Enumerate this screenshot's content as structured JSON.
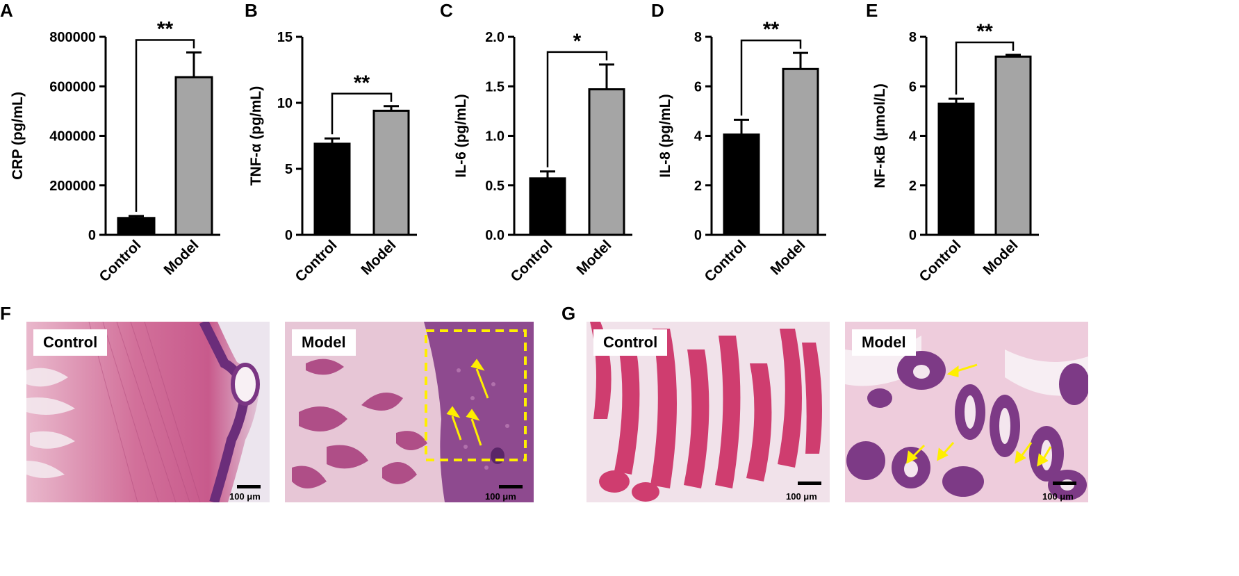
{
  "chart_data": [
    {
      "type": "bar",
      "panel": "A",
      "categories": [
        "Control",
        "Model"
      ],
      "values": [
        68000,
        637000
      ],
      "errors": [
        8000,
        100000
      ],
      "ylabel": "CRP (pg/mL)",
      "ylim": [
        0,
        800000
      ],
      "ticks": [
        0,
        200000,
        400000,
        600000,
        800000
      ],
      "tick_labels": [
        "0",
        "200000",
        "400000",
        "600000",
        "800000"
      ],
      "significance": "**",
      "colors": [
        "#000000",
        "#a5a5a5"
      ]
    },
    {
      "type": "bar",
      "panel": "B",
      "categories": [
        "Control",
        "Model"
      ],
      "values": [
        6.9,
        9.4
      ],
      "errors": [
        0.4,
        0.35
      ],
      "ylabel": "TNF-α (pg/mL)",
      "ylim": [
        0,
        15
      ],
      "ticks": [
        0,
        5,
        10,
        15
      ],
      "tick_labels": [
        "0",
        "5",
        "10",
        "15"
      ],
      "significance": "**",
      "colors": [
        "#000000",
        "#a5a5a5"
      ]
    },
    {
      "type": "bar",
      "panel": "C",
      "categories": [
        "Control",
        "Model"
      ],
      "values": [
        0.57,
        1.47
      ],
      "errors": [
        0.07,
        0.25
      ],
      "ylabel": "IL-6 (pg/mL)",
      "ylim": [
        0,
        2.0
      ],
      "ticks": [
        0,
        0.5,
        1.0,
        1.5,
        2.0
      ],
      "tick_labels": [
        "0.0",
        "0.5",
        "1.0",
        "1.5",
        "2.0"
      ],
      "significance": "*",
      "colors": [
        "#000000",
        "#a5a5a5"
      ]
    },
    {
      "type": "bar",
      "panel": "D",
      "categories": [
        "Control",
        "Model"
      ],
      "values": [
        4.05,
        6.7
      ],
      "errors": [
        0.6,
        0.65
      ],
      "ylabel": "IL-8 (pg/mL)",
      "ylim": [
        0,
        8
      ],
      "ticks": [
        0,
        2,
        4,
        6,
        8
      ],
      "tick_labels": [
        "0",
        "2",
        "4",
        "6",
        "8"
      ],
      "significance": "**",
      "colors": [
        "#000000",
        "#a5a5a5"
      ]
    },
    {
      "type": "bar",
      "panel": "E",
      "categories": [
        "Control",
        "Model"
      ],
      "values": [
        5.3,
        7.2
      ],
      "errors": [
        0.2,
        0.07
      ],
      "ylabel": "NF-κB (μmol/L)",
      "ylim": [
        0,
        8
      ],
      "ticks": [
        0,
        2,
        4,
        6,
        8
      ],
      "tick_labels": [
        "0",
        "2",
        "4",
        "6",
        "8"
      ],
      "significance": "**",
      "colors": [
        "#000000",
        "#a5a5a5"
      ]
    }
  ],
  "panel_letters": [
    "A",
    "B",
    "C",
    "D",
    "E",
    "F",
    "G"
  ],
  "micrographs": {
    "f_control": {
      "label": "Control",
      "scale": "100 μm"
    },
    "f_model": {
      "label": "Model",
      "scale": "100 μm"
    },
    "g_control": {
      "label": "Control",
      "scale": "100 μm"
    },
    "g_model": {
      "label": "Model",
      "scale": "100 μm"
    }
  },
  "colors": {
    "stain_pink": "#d9739c",
    "stain_purple": "#8a3c82",
    "arrow_yellow": "#ffef00"
  }
}
